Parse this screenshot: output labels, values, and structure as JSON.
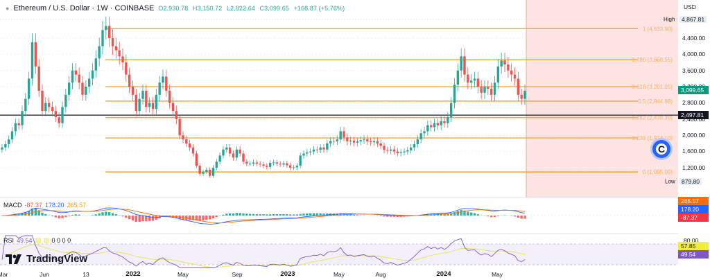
{
  "header": {
    "symbol_title": "Ethereum / U.S. Dollar · 1W · COINBASE",
    "open": "O2,930.78",
    "high": "H3,150.72",
    "low": "L2,822.64",
    "close": "C3,099.65",
    "change": "+168.87 (+5.76%)"
  },
  "price_axis": {
    "unit": "USD",
    "ticks": [
      "4,400.00",
      "4,000.00",
      "3,600.00",
      "3,200.00",
      "2,800.00",
      "2,400.00",
      "2,000.00",
      "1,600.00",
      "1,200.00"
    ],
    "high_label": "High",
    "high_value": "4,867.81",
    "low_label": "Low",
    "low_value": "879.80",
    "last_price": "3,099.65",
    "crosshair_price": "2,497.81"
  },
  "macd": {
    "name": "MACD",
    "macd_value": "-87.37",
    "signal_value": "178.20",
    "hist_value": "265.57",
    "tag_1": "265.57",
    "tag_2": "178.20",
    "tag_3": "-87.37"
  },
  "rsi": {
    "name": "RSI",
    "value": "49.54",
    "extra": "0 0 0 0",
    "level_top": "80.00",
    "level_bottom": "40.00",
    "tag_ma": "57.85",
    "tag_rsi": "49.54"
  },
  "time_axis": {
    "labels": [
      "Mar",
      "Jun",
      "13",
      "2022",
      "May",
      "Sep",
      "2023",
      "May",
      "Aug",
      "2024",
      "May"
    ]
  },
  "branding": {
    "logo_text": "TradingView"
  },
  "colors": {
    "up": "#26a69a",
    "down": "#ef5350",
    "fib": "#f7a440",
    "shade": "#fde3e1",
    "macd_line": "#2962ff",
    "signal_line": "#ff6d00",
    "rsi_line": "#7e57c2",
    "rsi_ma": "#e6e44a"
  },
  "chart_data": {
    "type": "candlestick",
    "title": "Ethereum / U.S. Dollar · 1W · COINBASE",
    "xlabel": "",
    "ylabel": "USD",
    "ylim": [
      879.8,
      4867.81
    ],
    "x_ticks": [
      "Mar",
      "Jun",
      "13",
      "2022",
      "May",
      "Sep",
      "2023",
      "May",
      "Aug",
      "2024",
      "May"
    ],
    "y_ticks": [
      1200,
      1600,
      2000,
      2400,
      2800,
      3200,
      3600,
      4000,
      4400
    ],
    "last_candle": {
      "open": 2930.78,
      "high": 3150.72,
      "low": 2822.64,
      "close": 3099.65,
      "change": 168.87,
      "change_pct": 5.76
    },
    "fib_levels": [
      {
        "ratio": "1",
        "price": 4633.9
      },
      {
        "ratio": "0.786",
        "price": 3868.55
      },
      {
        "ratio": "0.618",
        "price": 3201.05
      },
      {
        "ratio": "0.5",
        "price": 2844.88
      },
      {
        "ratio": "0.382",
        "price": 2438.39
      },
      {
        "ratio": "0.236",
        "price": 1934.1
      },
      {
        "ratio": "0",
        "price": 1095.0
      }
    ],
    "horizontal_line": 2497.81,
    "range_high": 4867.81,
    "range_low": 879.8,
    "close_series": [
      1700,
      1780,
      1900,
      2100,
      2300,
      2250,
      2600,
      2900,
      3400,
      4300,
      3700,
      3100,
      2600,
      2800,
      2700,
      2600,
      2450,
      2300,
      2700,
      3000,
      3300,
      3600,
      3500,
      3300,
      3000,
      3200,
      3400,
      3600,
      3900,
      4200,
      4600,
      4700,
      4400,
      4200,
      4100,
      3950,
      3800,
      3500,
      3200,
      3000,
      2600,
      2900,
      3100,
      2700,
      2800,
      2650,
      3000,
      3300,
      3450,
      3100,
      2800,
      2600,
      2400,
      2000,
      1900,
      1800,
      1700,
      1550,
      1250,
      1050,
      1100,
      1150,
      1000,
      1200,
      1350,
      1500,
      1650,
      1700,
      1550,
      1450,
      1650,
      1550,
      1350,
      1300,
      1300,
      1330,
      1300,
      1280,
      1250,
      1220,
      1320,
      1330,
      1300,
      1280,
      1310,
      1260,
      1200,
      1210,
      1250,
      1500,
      1550,
      1580,
      1600,
      1650,
      1640,
      1700,
      1650,
      1800,
      1860,
      1850,
      1900,
      2100,
      1950,
      1850,
      1870,
      1820,
      1850,
      1880,
      1900,
      1850,
      1830,
      1860,
      1800,
      1740,
      1640,
      1620,
      1650,
      1600,
      1560,
      1580,
      1600,
      1630,
      1700,
      1780,
      1900,
      2050,
      2100,
      2250,
      2200,
      2300,
      2250,
      2350,
      2300,
      2450,
      2800,
      3250,
      3600,
      3950,
      3500,
      3300,
      3350,
      3400,
      3200,
      3050,
      3200,
      3150,
      3000,
      3300,
      3700,
      3850,
      3750,
      3600,
      3500,
      3400,
      3000,
      2900,
      3100
    ]
  }
}
